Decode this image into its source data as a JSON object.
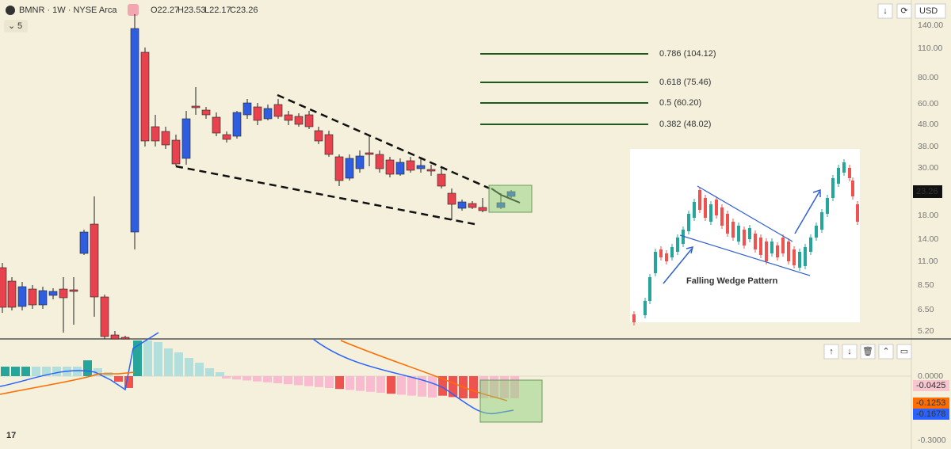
{
  "header": {
    "symbol": "BMNR · 1W · NYSE Arca",
    "open": "O22.27",
    "high": "H23.53",
    "low": "L22.17",
    "close": "C23.26",
    "collapse": "5"
  },
  "toolbar": {
    "currency": "USD"
  },
  "price_axis": {
    "ticks": [
      "140.00",
      "110.00",
      "80.00",
      "60.00",
      "48.00",
      "38.00",
      "30.00",
      "18.00",
      "14.00",
      "11.00",
      "8.50",
      "6.50",
      "5.20"
    ],
    "last_price": "23.26"
  },
  "fib_levels": [
    "0.786 (104.12)",
    "0.618 (75.46)",
    "0.5 (60.20)",
    "0.382 (48.02)"
  ],
  "inset": {
    "caption": "Falling Wedge Pattern"
  },
  "indicator_axis": {
    "ticks": [
      "0.0000",
      "-0.3000"
    ],
    "histogram": "-0.0425",
    "signal": "-0.1253",
    "macd": "-0.1678"
  }
}
